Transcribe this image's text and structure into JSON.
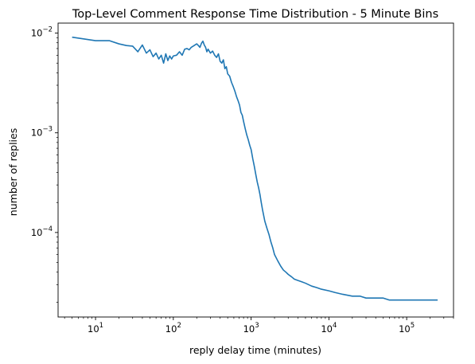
{
  "chart_data": {
    "type": "line",
    "title": "Top-Level Comment Response Time Distribution - 5 Minute Bins",
    "xlabel": "reply delay time (minutes)",
    "ylabel": "number of replies",
    "xscale": "log",
    "yscale": "log",
    "xlim": [
      3.3,
      400000
    ],
    "ylim": [
      1.42e-05,
      0.0126
    ],
    "grid": false,
    "line_color": "#1f77b4",
    "x_ticks": [
      {
        "value": 10,
        "base": "10",
        "exp": "1"
      },
      {
        "value": 100,
        "base": "10",
        "exp": "2"
      },
      {
        "value": 1000,
        "base": "10",
        "exp": "3"
      },
      {
        "value": 10000,
        "base": "10",
        "exp": "4"
      },
      {
        "value": 100000,
        "base": "10",
        "exp": "5"
      }
    ],
    "y_ticks": [
      {
        "value": 0.0001,
        "base": "10",
        "exp": "−4"
      },
      {
        "value": 0.001,
        "base": "10",
        "exp": "−3"
      },
      {
        "value": 0.01,
        "base": "10",
        "exp": "−2"
      }
    ],
    "series": [
      {
        "x": [
          5,
          10,
          15,
          20,
          25,
          30,
          35,
          40,
          45,
          50,
          55,
          60,
          65,
          70,
          75,
          80,
          85,
          90,
          95,
          100,
          110,
          120,
          130,
          140,
          150,
          160,
          170,
          180,
          190,
          200,
          210,
          220,
          230,
          240,
          250,
          260,
          270,
          280,
          300,
          320,
          340,
          360,
          380,
          400,
          420,
          440,
          460,
          480,
          500,
          530,
          560,
          590,
          620,
          650,
          680,
          710,
          740,
          770,
          800,
          840,
          880,
          920,
          960,
          1000,
          1050,
          1100,
          1150,
          1200,
          1250,
          1300,
          1350,
          1400,
          1500,
          1600,
          1700,
          1800,
          1900,
          2000,
          2200,
          2400,
          2600,
          2800,
          3000,
          3300,
          3600,
          4000,
          4500,
          5000,
          6000,
          7000,
          8000,
          10000,
          12000,
          15000,
          20000,
          25000,
          30000,
          40000,
          50000,
          60000,
          80000,
          100000,
          150000,
          180000,
          190000,
          250000
        ],
        "y": [
          0.0091,
          0.0084,
          0.0084,
          0.0078,
          0.0075,
          0.0074,
          0.0065,
          0.0076,
          0.0063,
          0.0068,
          0.0058,
          0.0063,
          0.0055,
          0.006,
          0.005,
          0.0062,
          0.0053,
          0.0059,
          0.0055,
          0.0059,
          0.006,
          0.0065,
          0.006,
          0.0069,
          0.007,
          0.0068,
          0.0072,
          0.0074,
          0.0076,
          0.0078,
          0.0075,
          0.0072,
          0.0079,
          0.0083,
          0.0076,
          0.0072,
          0.0065,
          0.0069,
          0.0063,
          0.0066,
          0.006,
          0.0057,
          0.0062,
          0.0052,
          0.005,
          0.0054,
          0.0044,
          0.0046,
          0.0039,
          0.0037,
          0.0032,
          0.0029,
          0.0026,
          0.0023,
          0.0021,
          0.0019,
          0.0016,
          0.0015,
          0.0013,
          0.0011,
          0.00095,
          0.00085,
          0.00075,
          0.00068,
          0.00055,
          0.00046,
          0.00038,
          0.00032,
          0.00028,
          0.00024,
          0.0002,
          0.00017,
          0.00013,
          0.00011,
          9.5e-05,
          8e-05,
          7e-05,
          6e-05,
          5.2e-05,
          4.6e-05,
          4.2e-05,
          4e-05,
          3.8e-05,
          3.6e-05,
          3.4e-05,
          3.3e-05,
          3.2e-05,
          3.1e-05,
          2.9e-05,
          2.8e-05,
          2.7e-05,
          2.6e-05,
          2.5e-05,
          2.4e-05,
          2.3e-05,
          2.3e-05,
          2.2e-05,
          2.2e-05,
          2.2e-05,
          2.1e-05,
          2.1e-05,
          2.1e-05,
          2.1e-05,
          2.1e-05,
          2.1e-05,
          2.1e-05
        ]
      }
    ]
  }
}
